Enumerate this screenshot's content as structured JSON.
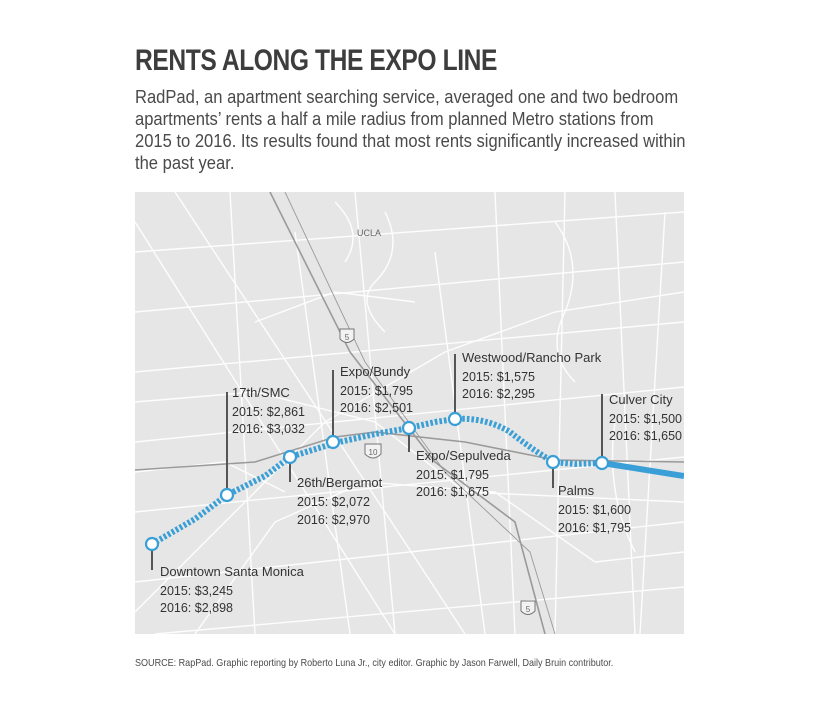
{
  "title": "RENTS ALONG THE EXPO LINE",
  "intro": "RadPad, an apartment searching service, averaged one and two bedroom apartments’ rents a half a mile radius from planned Metro stations from 2015 to 2016. Its results found that most rents significantly increased within the past year.",
  "source": "SOURCE: RapPad. Graphic reporting by Roberto Luna Jr., city editor. Graphic by Jason Farwell, Daily Bruin contributor.",
  "map": {
    "landmark": "UCLA",
    "highways": {
      "i5": "5",
      "i10": "10",
      "i405": "5"
    },
    "colors": {
      "line": "#3a9fd6",
      "background": "#e6e6e6",
      "streets": "#ffffff",
      "freeway": "#9a9a9a",
      "leader": "#555555"
    },
    "stations": [
      {
        "name": "Downtown Santa Monica",
        "rent_2015": "2015: $3,245",
        "rent_2016": "2016: $2,898"
      },
      {
        "name": "17th/SMC",
        "rent_2015": "2015: $2,861",
        "rent_2016": "2016: $3,032"
      },
      {
        "name": "26th/Bergamot",
        "rent_2015": "2015: $2,072",
        "rent_2016": "2016: $2,970"
      },
      {
        "name": "Expo/Bundy",
        "rent_2015": "2015: $1,795",
        "rent_2016": "2016: $2,501"
      },
      {
        "name": "Expo/Sepulveda",
        "rent_2015": "2015: $1,795",
        "rent_2016": "2016: $1,675"
      },
      {
        "name": "Westwood/Rancho Park",
        "rent_2015": "2015: $1,575",
        "rent_2016": "2016: $2,295"
      },
      {
        "name": "Palms",
        "rent_2015": "2015: $1,600",
        "rent_2016": "2016: $1,795"
      },
      {
        "name": "Culver City",
        "rent_2015": "2015: $1,500",
        "rent_2016": "2016: $1,650"
      }
    ]
  }
}
